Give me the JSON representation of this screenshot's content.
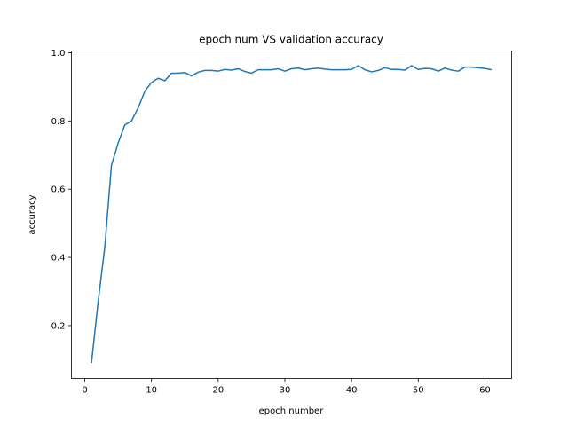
{
  "chart_data": {
    "type": "line",
    "title": "epoch num VS validation accuracy",
    "xlabel": "epoch number",
    "ylabel": "accuracy",
    "xlim": [
      -2,
      64
    ],
    "ylim": [
      0.045,
      1.005
    ],
    "xticks": [
      0,
      10,
      20,
      30,
      40,
      50,
      60
    ],
    "yticks": [
      0.2,
      0.4,
      0.6,
      0.8,
      1.0
    ],
    "ytick_labels": [
      "0.2",
      "0.4",
      "0.6",
      "0.8",
      "1.0"
    ],
    "grid": false,
    "series": [
      {
        "color": "#1f77b4",
        "x": [
          1,
          2,
          3,
          4,
          5,
          6,
          7,
          8,
          9,
          10,
          11,
          12,
          13,
          14,
          15,
          16,
          17,
          18,
          19,
          20,
          21,
          22,
          23,
          24,
          25,
          26,
          27,
          28,
          29,
          30,
          31,
          32,
          33,
          34,
          35,
          36,
          37,
          38,
          39,
          40,
          41,
          42,
          43,
          44,
          45,
          46,
          47,
          48,
          49,
          50,
          51,
          52,
          53,
          54,
          55,
          56,
          57,
          58,
          59,
          60,
          61
        ],
        "values": [
          0.09,
          0.27,
          0.43,
          0.67,
          0.735,
          0.788,
          0.8,
          0.838,
          0.887,
          0.913,
          0.925,
          0.918,
          0.94,
          0.94,
          0.942,
          0.932,
          0.943,
          0.948,
          0.948,
          0.946,
          0.951,
          0.949,
          0.953,
          0.945,
          0.94,
          0.95,
          0.95,
          0.95,
          0.953,
          0.946,
          0.953,
          0.955,
          0.95,
          0.953,
          0.955,
          0.952,
          0.95,
          0.95,
          0.95,
          0.951,
          0.962,
          0.95,
          0.944,
          0.948,
          0.956,
          0.951,
          0.951,
          0.949,
          0.962,
          0.951,
          0.954,
          0.953,
          0.946,
          0.955,
          0.949,
          0.946,
          0.958,
          0.958,
          0.956,
          0.954,
          0.95
        ]
      }
    ]
  }
}
